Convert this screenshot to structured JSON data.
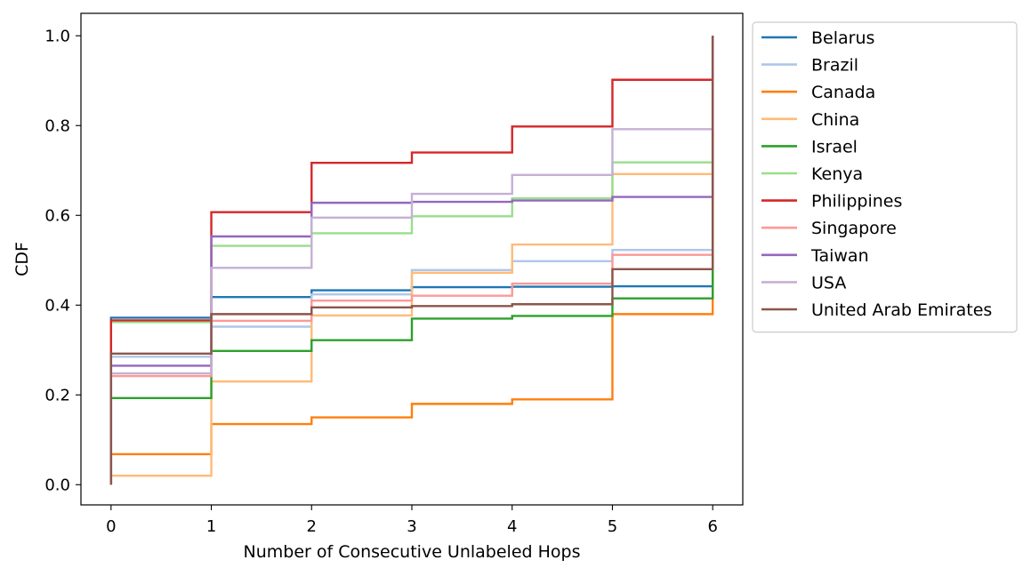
{
  "chart_data": {
    "type": "line",
    "step": "post",
    "xlabel": "Number of Consecutive Unlabeled Hops",
    "ylabel": "CDF",
    "xlim": [
      -0.3,
      6.3
    ],
    "ylim": [
      -0.045,
      1.05
    ],
    "xticks": [
      "0",
      "1",
      "2",
      "3",
      "4",
      "5",
      "6"
    ],
    "yticks": [
      "0.0",
      "0.2",
      "0.4",
      "0.6",
      "0.8",
      "1.0"
    ],
    "grid": false,
    "legend": "outside-right",
    "x": [
      0,
      1,
      2,
      3,
      4,
      5,
      6
    ],
    "series": [
      {
        "name": "Belarus",
        "color": "#1f77b4",
        "values": [
          0.372,
          0.418,
          0.433,
          0.44,
          0.441,
          0.442,
          1.0
        ]
      },
      {
        "name": "Brazil",
        "color": "#aec7e8",
        "values": [
          0.285,
          0.352,
          0.424,
          0.478,
          0.498,
          0.523,
          1.0
        ]
      },
      {
        "name": "Canada",
        "color": "#ff7f0e",
        "values": [
          0.068,
          0.135,
          0.15,
          0.18,
          0.19,
          0.38,
          1.0
        ]
      },
      {
        "name": "China",
        "color": "#ffbb78",
        "values": [
          0.02,
          0.23,
          0.377,
          0.472,
          0.535,
          0.692,
          1.0
        ]
      },
      {
        "name": "Israel",
        "color": "#2ca02c",
        "values": [
          0.193,
          0.298,
          0.322,
          0.37,
          0.376,
          0.415,
          1.0
        ]
      },
      {
        "name": "Kenya",
        "color": "#98df8a",
        "values": [
          0.362,
          0.532,
          0.56,
          0.598,
          0.638,
          0.718,
          1.0
        ]
      },
      {
        "name": "Philippines",
        "color": "#d62728",
        "values": [
          0.366,
          0.607,
          0.717,
          0.74,
          0.798,
          0.902,
          1.0
        ]
      },
      {
        "name": "Singapore",
        "color": "#ff9896",
        "values": [
          0.242,
          0.365,
          0.41,
          0.421,
          0.448,
          0.512,
          1.0
        ]
      },
      {
        "name": "Taiwan",
        "color": "#9467bd",
        "values": [
          0.265,
          0.553,
          0.628,
          0.63,
          0.633,
          0.641,
          1.0
        ]
      },
      {
        "name": "USA",
        "color": "#c5b0d5",
        "values": [
          0.248,
          0.483,
          0.595,
          0.648,
          0.69,
          0.792,
          1.0
        ]
      },
      {
        "name": "United Arab Emirates",
        "color": "#8c564b",
        "values": [
          0.292,
          0.38,
          0.395,
          0.398,
          0.402,
          0.48,
          1.0
        ]
      }
    ]
  }
}
